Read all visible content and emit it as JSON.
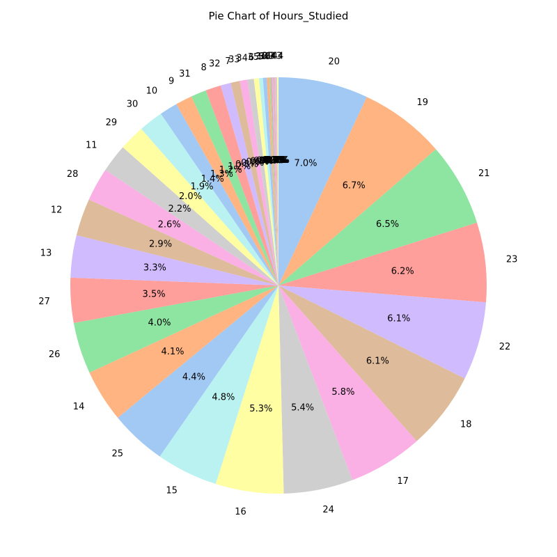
{
  "chart_data": {
    "type": "pie",
    "title": "Pie Chart of Hours_Studied",
    "start_angle_deg": 90,
    "direction": "clockwise",
    "autopct_format": "{:.1f}%",
    "colors": [
      "#a1c9f4",
      "#ffb482",
      "#8de5a1",
      "#ff9f9b",
      "#d0bbff",
      "#debb9b",
      "#fab0e4",
      "#cfcfcf",
      "#fffea3",
      "#b9f2f0"
    ],
    "categories": [
      "20",
      "19",
      "21",
      "23",
      "22",
      "18",
      "17",
      "24",
      "16",
      "15",
      "25",
      "14",
      "26",
      "27",
      "13",
      "12",
      "28",
      "11",
      "29",
      "30",
      "10",
      "9",
      "31",
      "8",
      "32",
      "7",
      "33",
      "34",
      "6",
      "35",
      "5",
      "36",
      "4",
      "38",
      "1",
      "39",
      "3",
      "43",
      "44"
    ],
    "values": [
      7.0,
      6.7,
      6.5,
      6.2,
      6.1,
      6.1,
      5.8,
      5.4,
      5.3,
      4.8,
      4.4,
      4.1,
      4.0,
      3.5,
      3.3,
      2.9,
      2.6,
      2.2,
      2.0,
      1.9,
      1.4,
      1.3,
      1.2,
      1.2,
      0.8,
      0.7,
      0.6,
      0.5,
      0.4,
      0.3,
      0.3,
      0.2,
      0.1,
      0.1,
      0.1,
      0.1,
      0.1,
      0.1,
      0.1
    ]
  }
}
